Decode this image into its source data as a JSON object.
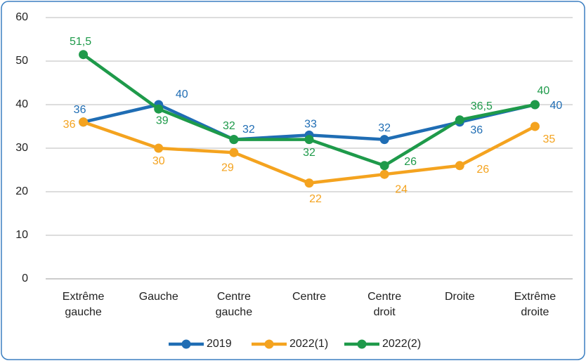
{
  "chart_data": {
    "type": "line",
    "categories": [
      "Extrême gauche",
      "Gauche",
      "Centre gauche",
      "Centre",
      "Centre droit",
      "Droite",
      "Extrême droite"
    ],
    "series": [
      {
        "name": "2019",
        "color": "#1f6db4",
        "values": [
          36,
          40,
          32,
          33,
          32,
          36,
          40
        ]
      },
      {
        "name": "2022(1)",
        "color": "#f4a31f",
        "values": [
          36,
          30,
          29,
          22,
          24,
          26,
          35
        ]
      },
      {
        "name": "2022(2)",
        "color": "#1e9a4a",
        "values": [
          51.5,
          39,
          32,
          32,
          26,
          36.5,
          40
        ],
        "value_labels": [
          "51,5",
          "39",
          "32",
          "32",
          "26",
          "36,5",
          "40"
        ]
      }
    ],
    "ylim": [
      0,
      60
    ],
    "yticks": [
      0,
      10,
      20,
      30,
      40,
      50,
      60
    ],
    "grid": true,
    "legend": "bottom"
  }
}
